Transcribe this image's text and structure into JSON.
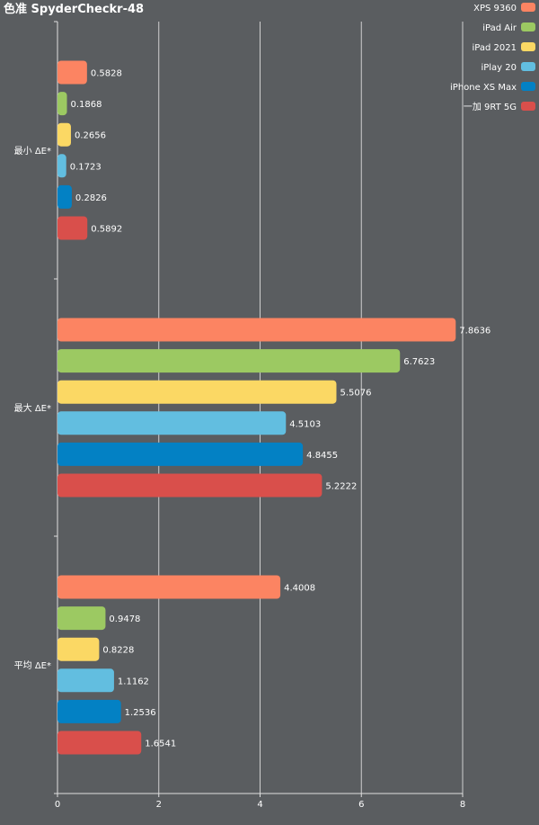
{
  "chart_data": {
    "type": "bar",
    "orientation": "horizontal",
    "title": "色准 SpyderCheckr-48",
    "categories": [
      "最小 ΔE*",
      "最大 ΔE*",
      "平均 ΔE*"
    ],
    "xlim": [
      0,
      8
    ],
    "xticks": [
      0,
      2,
      4,
      6,
      8
    ],
    "grid": true,
    "legend_position": "top-right",
    "series": [
      {
        "name": "XPS 9360",
        "color": "#fc8462",
        "values": [
          0.5828,
          7.8636,
          4.4008
        ]
      },
      {
        "name": "iPad Air",
        "color": "#9cc962",
        "values": [
          0.1868,
          6.7623,
          0.9478
        ]
      },
      {
        "name": "iPad 2021",
        "color": "#fbd864",
        "values": [
          0.2656,
          5.5076,
          0.8228
        ]
      },
      {
        "name": "iPlay 20",
        "color": "#62bee0",
        "values": [
          0.1723,
          4.5103,
          1.1162
        ]
      },
      {
        "name": "iPhone XS Max",
        "color": "#0381c4",
        "values": [
          0.2826,
          4.8455,
          1.2536
        ]
      },
      {
        "name": "一加 9RT 5G",
        "color": "#d94f4b",
        "values": [
          0.5892,
          5.2222,
          1.6541
        ]
      }
    ]
  }
}
